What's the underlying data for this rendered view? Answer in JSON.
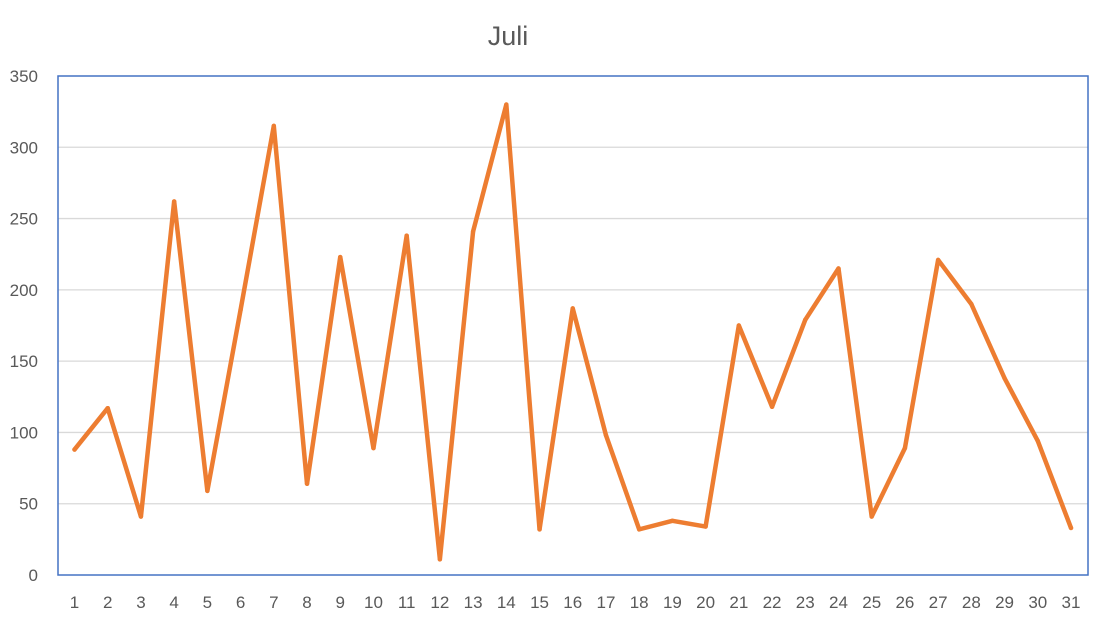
{
  "chart_data": {
    "type": "line",
    "title": "Juli",
    "xlabel": "",
    "ylabel": "",
    "categories": [
      "1",
      "2",
      "3",
      "4",
      "5",
      "6",
      "7",
      "8",
      "9",
      "10",
      "11",
      "12",
      "13",
      "14",
      "15",
      "16",
      "17",
      "18",
      "19",
      "20",
      "21",
      "22",
      "23",
      "24",
      "25",
      "26",
      "27",
      "28",
      "29",
      "30",
      "31"
    ],
    "yticks": [
      "0",
      "50",
      "100",
      "150",
      "200",
      "250",
      "300",
      "350"
    ],
    "ylim": [
      0,
      350
    ],
    "grid": true,
    "legend": "none",
    "series": [
      {
        "color": "#ED7D31",
        "values": [
          88,
          117,
          41,
          262,
          59,
          186,
          315,
          64,
          223,
          89,
          238,
          11,
          241,
          330,
          32,
          187,
          98,
          32,
          38,
          34,
          175,
          118,
          179,
          215,
          41,
          89,
          221,
          190,
          138,
          94,
          33
        ]
      }
    ],
    "colors": {
      "gridline": "#D9D9D9",
      "plot_border": "#4472C4",
      "text": "#595959"
    }
  }
}
